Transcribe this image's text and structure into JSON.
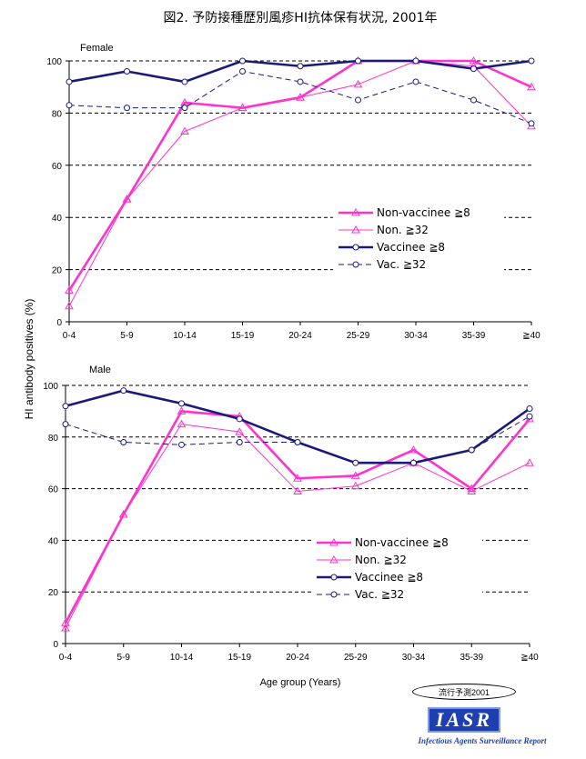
{
  "figure": {
    "title": "図2. 予防接種歴別風疹HI抗体保有状況, 2001年",
    "ylabel": "HI antibody positives (%)",
    "xlabel": "Age group (Years)",
    "stamp_text": "流行予測2001",
    "logo_text": "IASR",
    "logo_subtitle": "Infectious Agents Surveillance Report"
  },
  "colors": {
    "magenta": "#ff33cc",
    "navy": "#1a1a7a",
    "axis": "#000000"
  },
  "chart_data": [
    {
      "type": "line",
      "panel_label": "Female",
      "categories": [
        "0-4",
        "5-9",
        "10-14",
        "15-19",
        "20-24",
        "25-29",
        "30-34",
        "35-39",
        "≧40"
      ],
      "yticks": [
        0,
        20,
        40,
        60,
        80,
        100
      ],
      "ylim": [
        0,
        100
      ],
      "grid": "dashed horizontal",
      "legend_position": "center-right",
      "series": [
        {
          "name": "Non-vaccinee ≧8",
          "values": [
            12,
            47,
            84,
            82,
            86,
            100,
            100,
            100,
            90
          ],
          "style": "solid-thick",
          "marker": "triangle",
          "color": "#ff33cc"
        },
        {
          "name": "Non. ≧32",
          "values": [
            6,
            47,
            73,
            82,
            86,
            91,
            100,
            98,
            75
          ],
          "style": "solid-thin",
          "marker": "triangle",
          "color": "#ff33cc"
        },
        {
          "name": "Vaccinee ≧8",
          "values": [
            92,
            96,
            92,
            100,
            98,
            100,
            100,
            97,
            100
          ],
          "style": "solid-thick",
          "marker": "circle",
          "color": "#1a1a7a"
        },
        {
          "name": "Vac. ≧32",
          "values": [
            83,
            82,
            82,
            96,
            92,
            85,
            92,
            85,
            76
          ],
          "style": "dashed",
          "marker": "circle",
          "color": "#1a1a7a"
        }
      ]
    },
    {
      "type": "line",
      "panel_label": "Male",
      "categories": [
        "0-4",
        "5-9",
        "10-14",
        "15-19",
        "20-24",
        "25-29",
        "30-34",
        "35-39",
        "≧40"
      ],
      "yticks": [
        0,
        20,
        40,
        60,
        80,
        100
      ],
      "ylim": [
        0,
        100
      ],
      "grid": "dashed horizontal",
      "legend_position": "center-right",
      "series": [
        {
          "name": "Non-vaccinee ≧8",
          "values": [
            8,
            50,
            90,
            88,
            64,
            65,
            75,
            60,
            87
          ],
          "style": "solid-thick",
          "marker": "triangle",
          "color": "#ff33cc"
        },
        {
          "name": "Non. ≧32",
          "values": [
            6,
            50,
            85,
            82,
            59,
            61,
            70,
            59,
            70
          ],
          "style": "solid-thin",
          "marker": "triangle",
          "color": "#ff33cc"
        },
        {
          "name": "Vaccinee ≧8",
          "values": [
            92,
            98,
            93,
            87,
            78,
            70,
            70,
            75,
            91
          ],
          "style": "solid-thick",
          "marker": "circle",
          "color": "#1a1a7a"
        },
        {
          "name": "Vac. ≧32",
          "values": [
            85,
            78,
            77,
            78,
            78,
            70,
            70,
            75,
            88
          ],
          "style": "dashed",
          "marker": "circle",
          "color": "#1a1a7a"
        }
      ]
    }
  ]
}
